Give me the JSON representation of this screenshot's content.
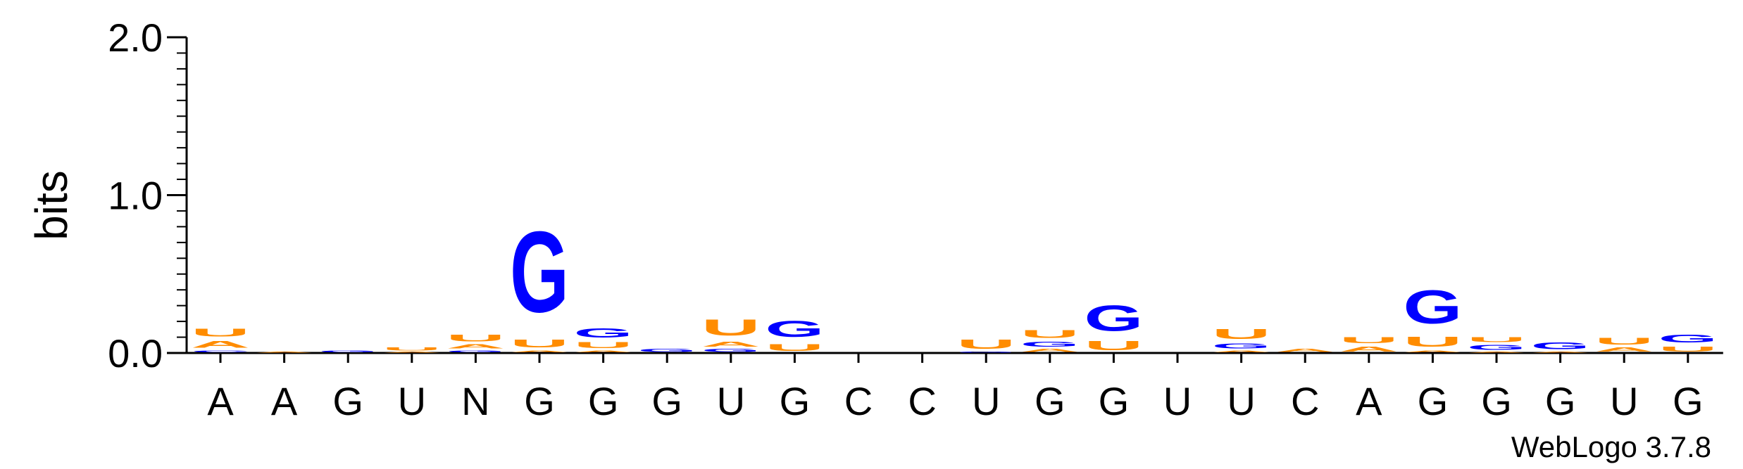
{
  "chart_data": {
    "type": "sequence-logo",
    "ylabel": "bits",
    "ylim": [
      0,
      2.0
    ],
    "yticks": [
      "0.0",
      "1.0",
      "2.0"
    ],
    "colors": {
      "G": "#0000ff",
      "C": "#0000ff",
      "U": "#ff8c00",
      "A": "#ff8c00"
    },
    "positions": [
      {
        "label": "A",
        "stack": [
          {
            "letter": "C",
            "bits": 0.02
          },
          {
            "letter": "A",
            "bits": 0.07
          },
          {
            "letter": "U",
            "bits": 0.08
          }
        ]
      },
      {
        "label": "A",
        "stack": [
          {
            "letter": "A",
            "bits": 0.01
          }
        ]
      },
      {
        "label": "G",
        "stack": [
          {
            "letter": "G",
            "bits": 0.02
          }
        ]
      },
      {
        "label": "U",
        "stack": [
          {
            "letter": "A",
            "bits": 0.01
          },
          {
            "letter": "U",
            "bits": 0.03
          }
        ]
      },
      {
        "label": "N",
        "stack": [
          {
            "letter": "G",
            "bits": 0.02
          },
          {
            "letter": "A",
            "bits": 0.04
          },
          {
            "letter": "U",
            "bits": 0.07
          }
        ]
      },
      {
        "label": "G",
        "stack": [
          {
            "letter": "A",
            "bits": 0.02
          },
          {
            "letter": "U",
            "bits": 0.08
          },
          {
            "letter": "G",
            "bits": 0.82
          }
        ]
      },
      {
        "label": "G",
        "stack": [
          {
            "letter": "A",
            "bits": 0.02
          },
          {
            "letter": "U",
            "bits": 0.06
          },
          {
            "letter": "G",
            "bits": 0.09
          }
        ]
      },
      {
        "label": "G",
        "stack": [
          {
            "letter": "G",
            "bits": 0.03
          }
        ]
      },
      {
        "label": "U",
        "stack": [
          {
            "letter": "G",
            "bits": 0.03
          },
          {
            "letter": "A",
            "bits": 0.05
          },
          {
            "letter": "U",
            "bits": 0.16
          }
        ]
      },
      {
        "label": "G",
        "stack": [
          {
            "letter": "U",
            "bits": 0.07
          },
          {
            "letter": "G",
            "bits": 0.16
          }
        ]
      },
      {
        "label": "C",
        "stack": []
      },
      {
        "label": "C",
        "stack": []
      },
      {
        "label": "U",
        "stack": [
          {
            "letter": "G",
            "bits": 0.01
          },
          {
            "letter": "U",
            "bits": 0.09
          }
        ]
      },
      {
        "label": "G",
        "stack": [
          {
            "letter": "A",
            "bits": 0.03
          },
          {
            "letter": "G",
            "bits": 0.05
          },
          {
            "letter": "U",
            "bits": 0.08
          }
        ]
      },
      {
        "label": "G",
        "stack": [
          {
            "letter": "U",
            "bits": 0.09
          },
          {
            "letter": "G",
            "bits": 0.26
          }
        ]
      },
      {
        "label": "U",
        "stack": []
      },
      {
        "label": "U",
        "stack": [
          {
            "letter": "A",
            "bits": 0.02
          },
          {
            "letter": "G",
            "bits": 0.05
          },
          {
            "letter": "U",
            "bits": 0.1
          }
        ]
      },
      {
        "label": "C",
        "stack": [
          {
            "letter": "A",
            "bits": 0.03
          }
        ]
      },
      {
        "label": "A",
        "stack": [
          {
            "letter": "A",
            "bits": 0.05
          },
          {
            "letter": "U",
            "bits": 0.06
          }
        ]
      },
      {
        "label": "G",
        "stack": [
          {
            "letter": "A",
            "bits": 0.02
          },
          {
            "letter": "U",
            "bits": 0.1
          },
          {
            "letter": "G",
            "bits": 0.34
          }
        ]
      },
      {
        "label": "G",
        "stack": [
          {
            "letter": "A",
            "bits": 0.01
          },
          {
            "letter": "G",
            "bits": 0.05
          },
          {
            "letter": "U",
            "bits": 0.05
          }
        ]
      },
      {
        "label": "G",
        "stack": [
          {
            "letter": "A",
            "bits": 0.01
          },
          {
            "letter": "G",
            "bits": 0.07
          }
        ]
      },
      {
        "label": "U",
        "stack": [
          {
            "letter": "A",
            "bits": 0.04
          },
          {
            "letter": "U",
            "bits": 0.07
          }
        ]
      },
      {
        "label": "G",
        "stack": [
          {
            "letter": "U",
            "bits": 0.05
          },
          {
            "letter": "G",
            "bits": 0.08
          }
        ]
      }
    ],
    "credit": "WebLogo 3.7.8"
  }
}
